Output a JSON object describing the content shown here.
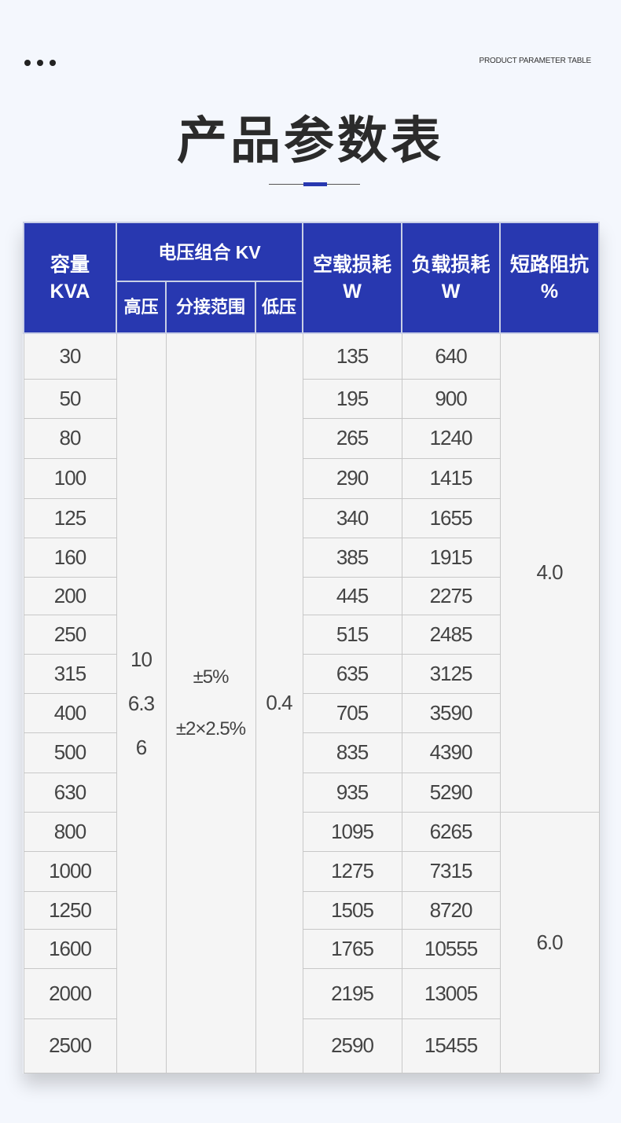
{
  "header": {
    "subtitle_en": "PRODUCT PARAMETER TABLE",
    "title": "产品参数表"
  },
  "table": {
    "headers": {
      "capacity": "容量",
      "capacity_unit": "KVA",
      "voltage_group": "电压组合 KV",
      "hv": "高压",
      "tap_range": "分接范围",
      "lv": "低压",
      "no_load_loss": "空载损耗",
      "no_load_unit": "W",
      "load_loss": "负载损耗",
      "load_unit": "W",
      "impedance": "短路阻抗",
      "impedance_unit": "%"
    },
    "hv_values": [
      "10",
      "6.3",
      "6"
    ],
    "tap_values": [
      "±5%",
      "±2×2.5%"
    ],
    "lv_value": "0.4",
    "impedance_groups": [
      "4.0",
      "6.0"
    ],
    "rows": [
      {
        "capacity": "30",
        "no_load": "135",
        "load": "640"
      },
      {
        "capacity": "50",
        "no_load": "195",
        "load": "900"
      },
      {
        "capacity": "80",
        "no_load": "265",
        "load": "1240"
      },
      {
        "capacity": "100",
        "no_load": "290",
        "load": "1415"
      },
      {
        "capacity": "125",
        "no_load": "340",
        "load": "1655"
      },
      {
        "capacity": "160",
        "no_load": "385",
        "load": "1915"
      },
      {
        "capacity": "200",
        "no_load": "445",
        "load": "2275"
      },
      {
        "capacity": "250",
        "no_load": "515",
        "load": "2485"
      },
      {
        "capacity": "315",
        "no_load": "635",
        "load": "3125"
      },
      {
        "capacity": "400",
        "no_load": "705",
        "load": "3590"
      },
      {
        "capacity": "500",
        "no_load": "835",
        "load": "4390"
      },
      {
        "capacity": "630",
        "no_load": "935",
        "load": "5290"
      },
      {
        "capacity": "800",
        "no_load": "1095",
        "load": "6265"
      },
      {
        "capacity": "1000",
        "no_load": "1275",
        "load": "7315"
      },
      {
        "capacity": "1250",
        "no_load": "1505",
        "load": "8720"
      },
      {
        "capacity": "1600",
        "no_load": "1765",
        "load": "10555"
      },
      {
        "capacity": "2000",
        "no_load": "2195",
        "load": "13005"
      },
      {
        "capacity": "2500",
        "no_load": "2590",
        "load": "15455"
      }
    ]
  }
}
